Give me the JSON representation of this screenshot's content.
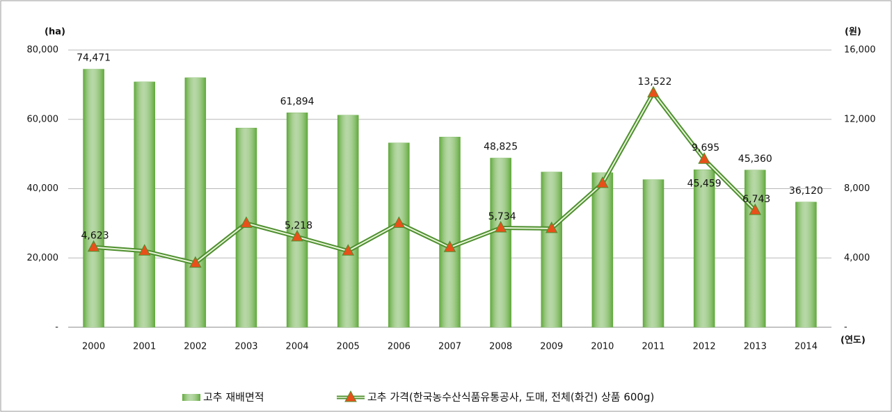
{
  "chart_data": {
    "type": "bar_line",
    "y_label": "(ha)",
    "y2_label": "(원)",
    "x_label": "(연도)",
    "categories": [
      "2000",
      "2001",
      "2002",
      "2003",
      "2004",
      "2005",
      "2006",
      "2007",
      "2008",
      "2009",
      "2010",
      "2011",
      "2012",
      "2013",
      "2014"
    ],
    "series": [
      {
        "name": "고추 재배면적",
        "type": "bar",
        "color": "#5fa83a",
        "values": [
          74471,
          70800,
          72000,
          57500,
          61894,
          61200,
          53200,
          54900,
          48825,
          44800,
          44600,
          42600,
          45459,
          45360,
          36120
        ],
        "value_labels": [
          "74,471",
          null,
          null,
          null,
          "61,894",
          null,
          null,
          null,
          "48,825",
          null,
          null,
          null,
          "45,459",
          "45,360",
          "36,120"
        ]
      },
      {
        "name": "고추 가격(한국농수산식품유통공사, 도매, 전체(화건) 상품 600g)",
        "type": "line",
        "axis": "y2",
        "color": "#4e8f2f",
        "marker_color": "#e8501a",
        "values": [
          4623,
          4400,
          3700,
          6000,
          5218,
          4400,
          6000,
          4600,
          5734,
          5700,
          8300,
          13522,
          9695,
          6743,
          null
        ],
        "value_labels": [
          "4,623",
          null,
          null,
          null,
          "5,218",
          null,
          null,
          null,
          "5,734",
          null,
          null,
          "13,522",
          "9,695",
          "6,743",
          null
        ]
      }
    ],
    "ylim": [
      0,
      80000
    ],
    "yticks": [
      {
        "value": 0,
        "label": "-"
      },
      {
        "value": 20000,
        "label": "20,000"
      },
      {
        "value": 40000,
        "label": "40,000"
      },
      {
        "value": 60000,
        "label": "60,000"
      },
      {
        "value": 80000,
        "label": "80,000"
      }
    ],
    "y2lim": [
      0,
      16000
    ],
    "y2ticks": [
      {
        "value": 0,
        "label": "-"
      },
      {
        "value": 4000,
        "label": "4,000"
      },
      {
        "value": 8000,
        "label": "8,000"
      },
      {
        "value": 12000,
        "label": "12,000"
      },
      {
        "value": 16000,
        "label": "16,000"
      }
    ],
    "grid": true
  }
}
